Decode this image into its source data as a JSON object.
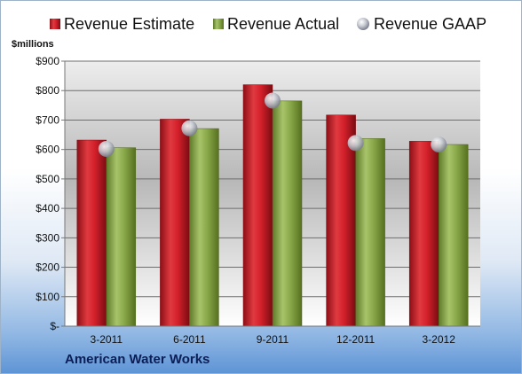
{
  "company": "American Water Works",
  "colors": {
    "estimate": "#d4202a",
    "actual": "#8aa94a",
    "gaap": "#b9bcc4"
  },
  "chart_data": {
    "type": "bar",
    "title": "",
    "xlabel": "",
    "ylabel": "$millions",
    "ylim": [
      0,
      900
    ],
    "yticks": [
      0,
      100,
      200,
      300,
      400,
      500,
      600,
      700,
      800,
      900
    ],
    "ytick_labels": [
      "$-",
      "$100",
      "$200",
      "$300",
      "$400",
      "$500",
      "$600",
      "$700",
      "$800",
      "$900"
    ],
    "grid": true,
    "legend_position": "top",
    "categories": [
      "3-2011",
      "6-2011",
      "9-2011",
      "12-2011",
      "3-2012"
    ],
    "series": [
      {
        "name": "Revenue Estimate",
        "kind": "bar",
        "values": [
          632,
          703,
          820,
          717,
          628
        ]
      },
      {
        "name": "Revenue Actual",
        "kind": "bar",
        "values": [
          606,
          671,
          765,
          637,
          617
        ]
      },
      {
        "name": "Revenue GAAP",
        "kind": "marker",
        "values": [
          602,
          672,
          766,
          622,
          617
        ]
      }
    ]
  }
}
